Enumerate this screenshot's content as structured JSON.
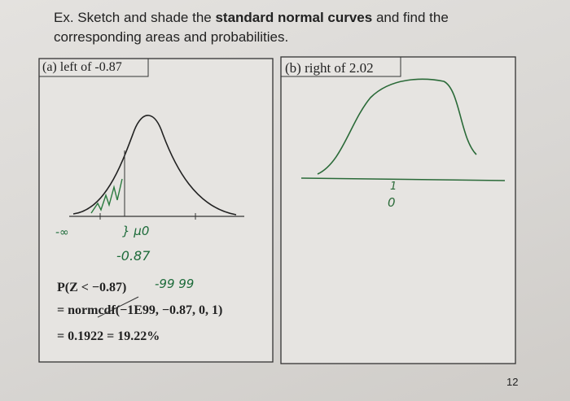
{
  "header": {
    "instruction_start": "Ex. Sketch and shade the ",
    "instruction_bold": "standard normal curves",
    "instruction_end": " and find the corresponding areas and probabilities."
  },
  "panels": [
    {
      "label": "(a) left of -0.87",
      "handwritten": [
        "-∞",
        "} μ0",
        "-0.87",
        "-99 99"
      ],
      "lines": [
        "P(Z < −0.87)",
        "= normcdf(−1E99, −0.87, 0, 1)",
        "= 0.1922 = 19.22%"
      ]
    },
    {
      "label": "(b) right of 2.02",
      "handwritten": [
        "1",
        "0"
      ]
    }
  ],
  "page_number": "12"
}
